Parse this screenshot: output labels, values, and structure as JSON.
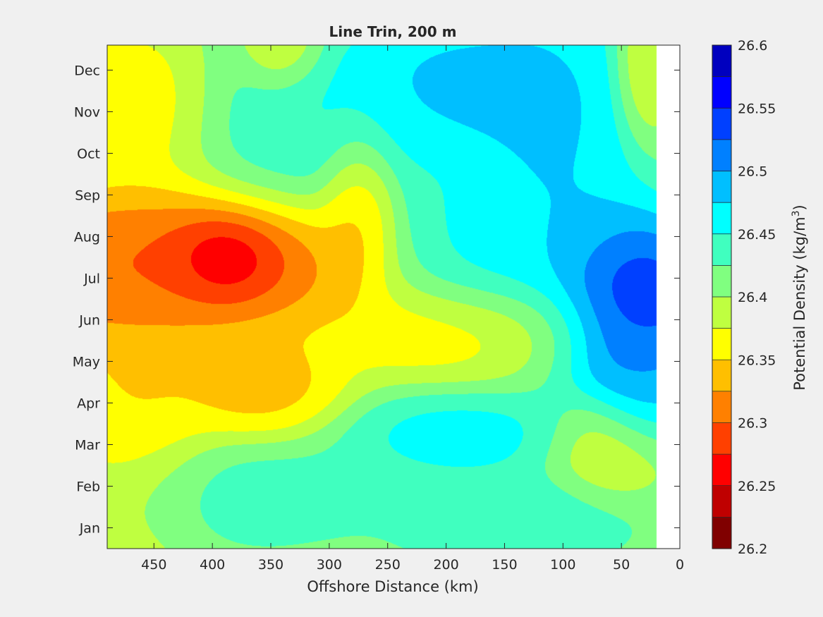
{
  "chart_data": {
    "type": "heatmap",
    "subtype": "filled-contour",
    "title": "Line Trin, 200 m",
    "xlabel": "Offshore Distance (km)",
    "ylabel": "",
    "x_reversed": true,
    "xlim": [
      490,
      0
    ],
    "xticks": [
      450,
      400,
      350,
      300,
      250,
      200,
      150,
      100,
      50,
      0
    ],
    "y_categories": [
      "Jan",
      "Feb",
      "Mar",
      "Apr",
      "May",
      "Jun",
      "Jul",
      "Aug",
      "Sep",
      "Oct",
      "Nov",
      "Dec"
    ],
    "ylim": [
      0.5,
      12.6
    ],
    "data_x_range": [
      490,
      20
    ],
    "colorbar": {
      "label": "Potential Density (kg/m",
      "label_sup": "3",
      "label_end": ")",
      "min": 26.2,
      "max": 26.6,
      "step": 0.025,
      "ticks": [
        "26.6",
        "26.55",
        "26.5",
        "26.45",
        "26.4",
        "26.35",
        "26.3",
        "26.25",
        "26.2"
      ],
      "colormap": "jet",
      "colors": [
        "#800000",
        "#bf0000",
        "#ff0000",
        "#ff4000",
        "#ff8000",
        "#ffbf00",
        "#ffff00",
        "#bfff40",
        "#80ff80",
        "#40ffbf",
        "#00ffff",
        "#00bfff",
        "#0080ff",
        "#0040ff",
        "#0000ff",
        "#0000bf"
      ]
    },
    "features": [
      {
        "x": 395,
        "month": 7.45,
        "value": 26.2,
        "sx": 28,
        "sy": 0.55
      },
      {
        "x": 420,
        "month": 7.3,
        "value": 26.26,
        "sx": 95,
        "sy": 1.0
      },
      {
        "x": 475,
        "month": 7.2,
        "value": 26.28,
        "sx": 45,
        "sy": 0.8
      },
      {
        "x": 465,
        "month": 5.2,
        "value": 26.33,
        "sx": 40,
        "sy": 2.5
      },
      {
        "x": 360,
        "month": 4.4,
        "value": 26.315,
        "sx": 40,
        "sy": 0.75
      },
      {
        "x": 275,
        "month": 8.6,
        "value": 26.32,
        "sx": 18,
        "sy": 1.2
      },
      {
        "x": 185,
        "month": 5.8,
        "value": 26.33,
        "sx": 65,
        "sy": 0.7
      },
      {
        "x": 470,
        "month": 11.2,
        "value": 26.34,
        "sx": 40,
        "sy": 1.0
      },
      {
        "x": 340,
        "month": 12.5,
        "value": 26.35,
        "sx": 20,
        "sy": 0.6
      },
      {
        "x": 60,
        "month": 2.8,
        "value": 26.36,
        "sx": 30,
        "sy": 0.7
      },
      {
        "x": 30,
        "month": 12.0,
        "value": 26.35,
        "sx": 15,
        "sy": 1.0
      },
      {
        "x": 300,
        "month": 10.8,
        "value": 26.46,
        "sx": 70,
        "sy": 1.2
      },
      {
        "x": 370,
        "month": 1.8,
        "value": 26.45,
        "sx": 70,
        "sy": 0.8
      },
      {
        "x": 190,
        "month": 3.2,
        "value": 26.48,
        "sx": 55,
        "sy": 0.6
      },
      {
        "x": 200,
        "month": 11.6,
        "value": 26.51,
        "sx": 60,
        "sy": 1.0
      },
      {
        "x": 110,
        "month": 10.2,
        "value": 26.5,
        "sx": 45,
        "sy": 2.5
      },
      {
        "x": 170,
        "month": 7.6,
        "value": 26.475,
        "sx": 55,
        "sy": 1.2
      },
      {
        "x": 40,
        "month": 6.4,
        "value": 26.6,
        "sx": 40,
        "sy": 1.2
      },
      {
        "x": 30,
        "month": 4.5,
        "value": 26.5,
        "sx": 25,
        "sy": 1.0
      },
      {
        "x": 140,
        "month": 1.2,
        "value": 26.46,
        "sx": 60,
        "sy": 0.7
      }
    ]
  }
}
